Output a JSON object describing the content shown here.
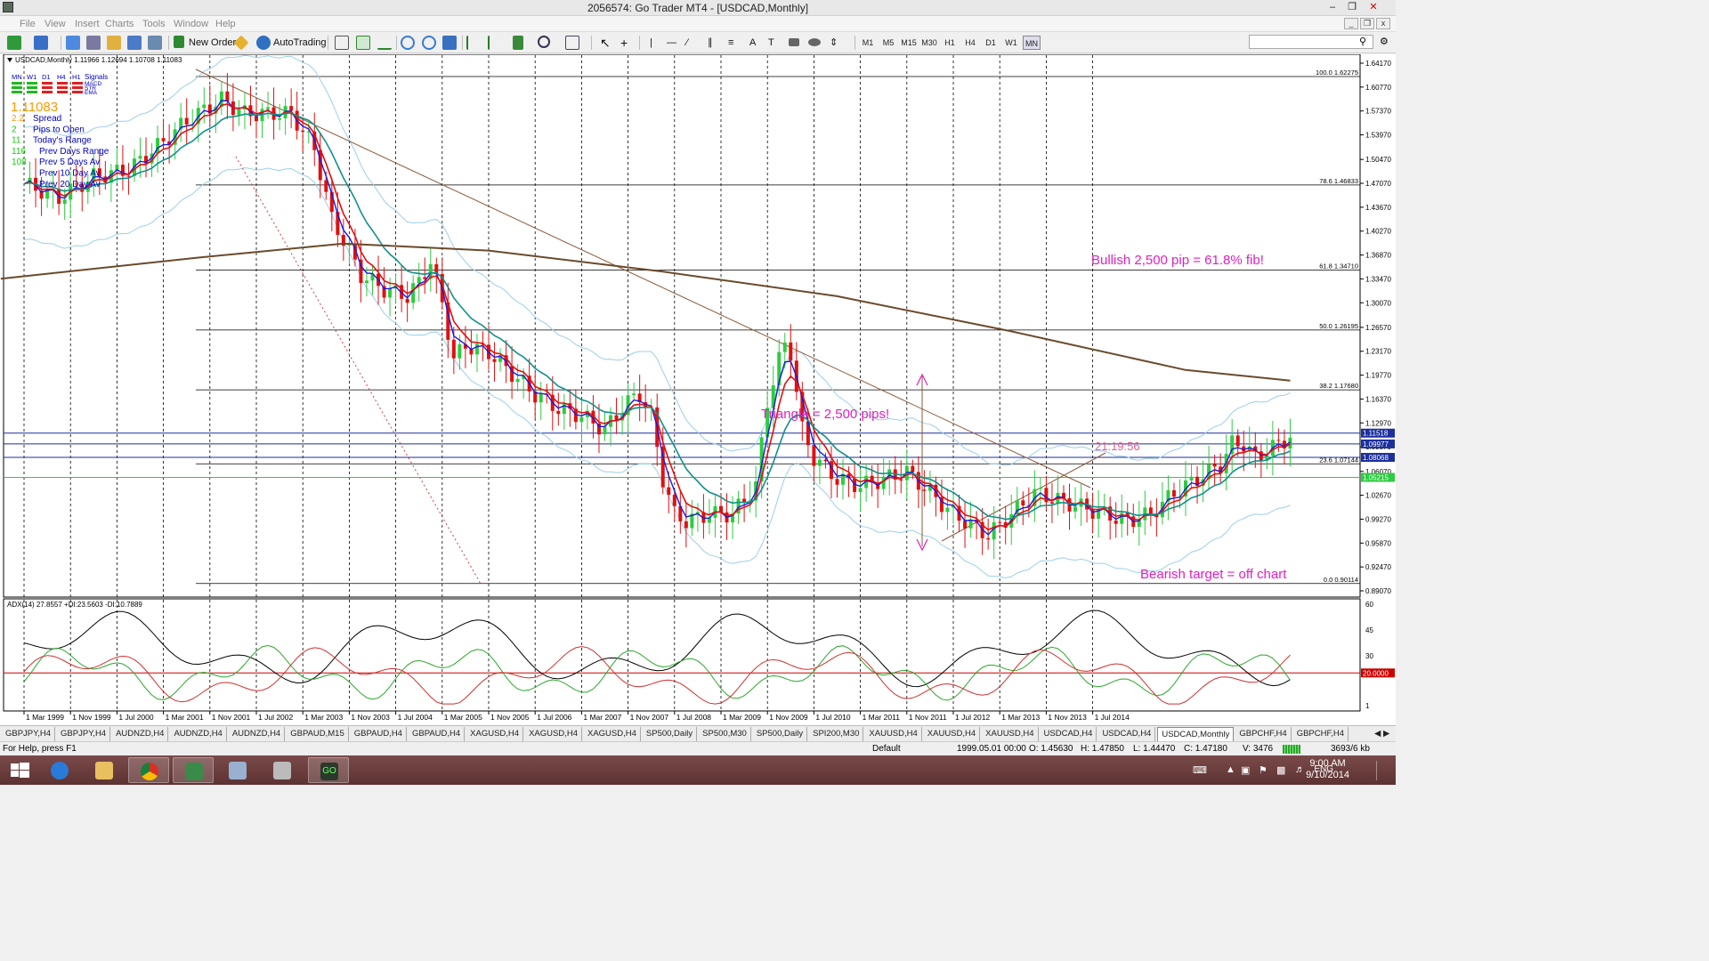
{
  "window": {
    "title": "2056574: Go Trader MT4 - [USDCAD,Monthly]"
  },
  "menu": [
    "File",
    "View",
    "Insert",
    "Charts",
    "Tools",
    "Window",
    "Help"
  ],
  "toolbar": {
    "new_order_label": "New Order",
    "autotrading_label": "AutoTrading",
    "timeframes": [
      "M1",
      "M5",
      "M15",
      "M30",
      "H1",
      "H4",
      "D1",
      "W1",
      "MN"
    ],
    "active_timeframe": "MN"
  },
  "chart": {
    "symbol_info": "USDCAD,Monthly  1.11966 1.12694 1.10708 1.11083",
    "signals": {
      "timeframes": [
        "MN",
        "W1",
        "D1",
        "H4",
        "H1"
      ],
      "title": "Signals",
      "rows": [
        "MACD",
        "STR",
        "EMA"
      ]
    },
    "info_panel": {
      "price": "1.11083",
      "lines": [
        {
          "value": "2.2",
          "label": "Spread"
        },
        {
          "value": "2",
          "label": "Pips to Open"
        },
        {
          "value": "11",
          "label": "Today's Range"
        },
        {
          "value": "116",
          "label": "Prev Days Range"
        },
        {
          "value": "108",
          "label": "Prev 5 Days Av"
        },
        {
          "value": "",
          "label": "Prev 10 Day Av"
        },
        {
          "value": "",
          "label": "Prev 20 Day Av"
        }
      ]
    },
    "price_axis": [
      "1.64170",
      "1.60770",
      "1.57370",
      "1.53970",
      "1.50470",
      "1.47070",
      "1.43670",
      "1.40270",
      "1.36870",
      "1.33470",
      "1.30070",
      "1.26570",
      "1.23170",
      "1.19770",
      "1.16370",
      "1.12970",
      "1.09570",
      "1.06070",
      "1.02670",
      "0.99270",
      "0.95870",
      "0.92470",
      "0.89070"
    ],
    "fib_levels": [
      {
        "label": "100.0 1.62275"
      },
      {
        "label": "78.6 1.46833"
      },
      {
        "label": "61.8 1.34710"
      },
      {
        "label": "50.0 1.26195"
      },
      {
        "label": "38.2 1.17680"
      },
      {
        "label": "23.6 1.07144"
      },
      {
        "label": "0.0 0.90114"
      }
    ],
    "price_tags": [
      {
        "value": "1.11518",
        "color": "#1c2f9c"
      },
      {
        "value": "1.09977",
        "color": "#1c2f9c"
      },
      {
        "value": "1.08068",
        "color": "#1c2f9c"
      },
      {
        "value": "1.05215",
        "color": "#2ecc40"
      }
    ],
    "time_axis": [
      "1 Mar 1999",
      "1 Nov 1999",
      "1 Jul 2000",
      "1 Mar 2001",
      "1 Nov 2001",
      "1 Jul 2002",
      "1 Mar 2003",
      "1 Nov 2003",
      "1 Jul 2004",
      "1 Mar 2005",
      "1 Nov 2005",
      "1 Jul 2006",
      "1 Mar 2007",
      "1 Nov 2007",
      "1 Jul 2008",
      "1 Mar 2009",
      "1 Nov 2009",
      "1 Jul 2010",
      "1 Mar 2011",
      "1 Nov 2011",
      "1 Jul 2012",
      "1 Mar 2013",
      "1 Nov 2013",
      "1 Jul 2014"
    ],
    "annotations": {
      "bullish": "Bullish 2,500 pip = 61.8% fib!",
      "triangle": "Triangle = 2,500 pips!",
      "bearish": "Bearish target = off chart",
      "countdown": "21:19:56"
    },
    "adx": {
      "label": "ADX(14) 27.8557 +DI:23.5603 -DI:10.7889",
      "axis": [
        "60",
        "45",
        "30",
        "1"
      ],
      "level_tag": "20.0000"
    }
  },
  "tabs": [
    "GBPJPY,H4",
    "GBPJPY,H4",
    "AUDNZD,H4",
    "AUDNZD,H4",
    "AUDNZD,H4",
    "GBPAUD,M15",
    "GBPAUD,H4",
    "GBPAUD,H4",
    "XAGUSD,H4",
    "XAGUSD,H4",
    "XAGUSD,H4",
    "SP500,Daily",
    "SP500,M30",
    "SP500,Daily",
    "SPI200,M30",
    "XAUUSD,H4",
    "XAUUSD,H4",
    "XAUUSD,H4",
    "USDCAD,H4",
    "USDCAD,H4",
    "USDCAD,Monthly",
    "GBPCHF,H4",
    "GBPCHF,H4"
  ],
  "active_tab": "USDCAD,Monthly",
  "status": {
    "help": "For Help, press F1",
    "profile": "Default",
    "datetime": "1999.05.01 00:00",
    "open": "O: 1.45630",
    "high": "H: 1.47850",
    "low": "L: 1.44470",
    "close": "C: 1.47180",
    "volume": "V: 3476",
    "traffic": "3693/6 kb"
  },
  "taskbar": {
    "lang": "ENG",
    "time": "9:00 AM",
    "date": "9/10/2014"
  },
  "colors": {
    "candle_up": "#2ecc40",
    "candle_down": "#e01010",
    "ema_fast": "#1a1adc",
    "ema_mid": "#e01010",
    "ema_slow": "#10908a",
    "sma_long": "#6b4a2a",
    "bands": "#9ccfe8",
    "annotation": "#e020c0"
  }
}
